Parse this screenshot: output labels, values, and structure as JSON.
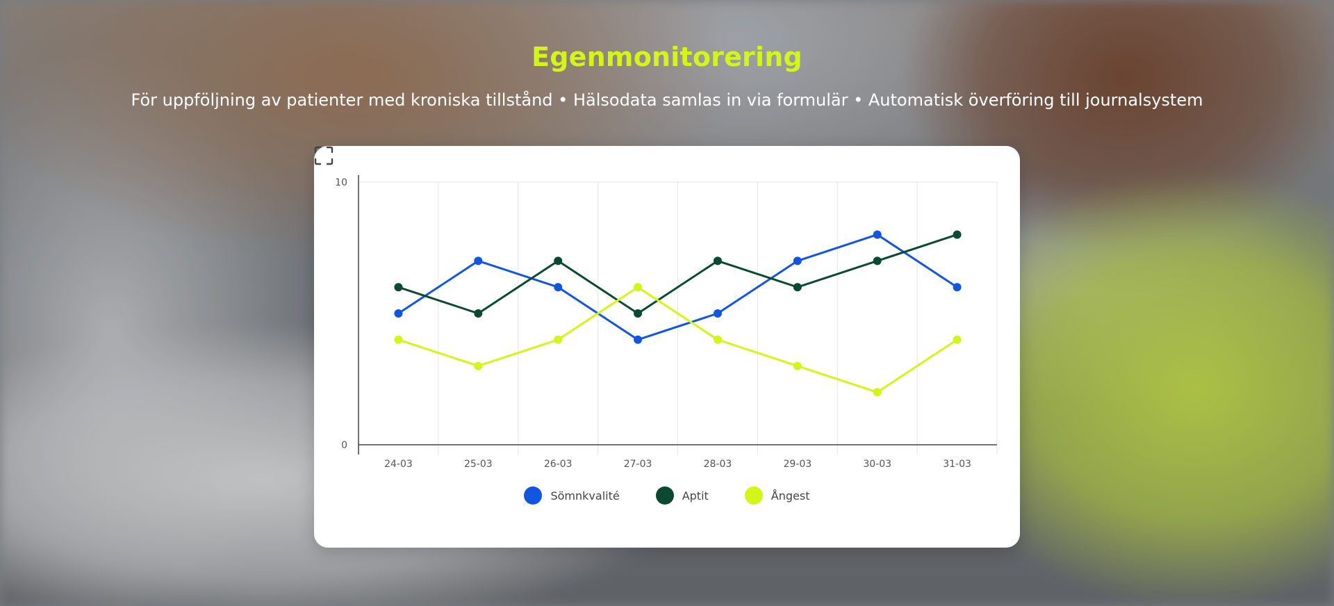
{
  "header": {
    "title": "Egenmonitorering",
    "subtitle": "För uppföljning av patienter med kroniska tillstånd • Hälsodata samlas in via formulär • Automatisk överföring till journalsystem"
  },
  "colors": {
    "title": "#d4f51a",
    "grid": "#e6e6e6",
    "axis": "#444444"
  },
  "fullscreen": {
    "icon": "fullscreen-icon"
  },
  "chart_data": {
    "type": "line",
    "categories": [
      "24-03",
      "25-03",
      "26-03",
      "27-03",
      "28-03",
      "29-03",
      "30-03",
      "31-03"
    ],
    "ylim": [
      0,
      10
    ],
    "yticks": [
      0,
      10
    ],
    "grid": true,
    "legend_position": "bottom-center",
    "series": [
      {
        "name": "Sömnkvalité",
        "color": "#1155e0",
        "values": [
          5,
          7,
          6,
          4,
          5,
          7,
          8,
          6
        ]
      },
      {
        "name": "Aptit",
        "color": "#0b4a30",
        "values": [
          6,
          5,
          7,
          5,
          7,
          6,
          7,
          8
        ]
      },
      {
        "name": "Ångest",
        "color": "#d4f51a",
        "values": [
          4,
          3,
          4,
          6,
          4,
          3,
          2,
          4
        ]
      }
    ]
  }
}
